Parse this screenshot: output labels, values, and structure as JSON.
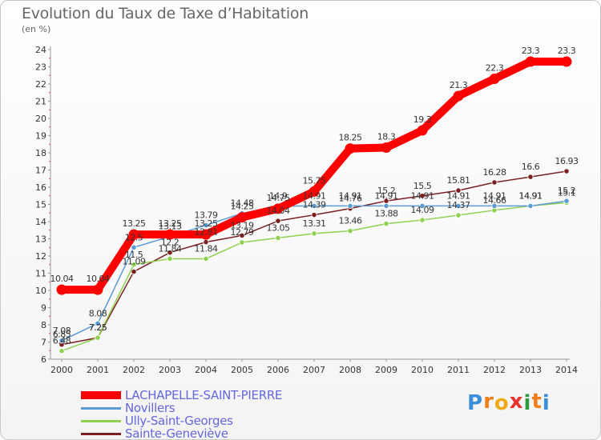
{
  "title": "Evolution du Taux de Taxe d’Habitation",
  "subtitle": "(en %)",
  "logo": {
    "letters": [
      "P",
      "r",
      "o",
      "x",
      "i",
      "t",
      "i"
    ],
    "colors": [
      "#3a8fd9",
      "#f07f1a",
      "#f0a91a",
      "#e8342c",
      "#2d9a3e",
      "#f07f1a",
      "#3a8fd9"
    ]
  },
  "chart_data": {
    "type": "line",
    "x": [
      "2000",
      "2001",
      "2002",
      "2003",
      "2004",
      "2005",
      "2006",
      "2007",
      "2008",
      "2009",
      "2010",
      "2011",
      "2012",
      "2013",
      "2014"
    ],
    "ylim": [
      6,
      24
    ],
    "yticks": [
      6,
      7,
      8,
      9,
      10,
      11,
      12,
      13,
      14,
      15,
      16,
      17,
      18,
      19,
      20,
      21,
      22,
      23,
      24
    ],
    "grid": false,
    "legend_position": "bottom-left",
    "series": [
      {
        "name": "LACHAPELLE-SAINT-PIERRE",
        "color": "#ff0000",
        "values": [
          10.04,
          10.04,
          13.25,
          13.25,
          13.25,
          14.25,
          14.75,
          15.75,
          18.25,
          18.3,
          19.3,
          21.3,
          22.3,
          23.3,
          23.3
        ],
        "labels": [
          "10.04",
          "10.04",
          "13.25",
          "13.25",
          "13.25",
          "14.25",
          "14.75",
          "15.75",
          "18.25",
          "18.3",
          "19.3",
          "21.3",
          "22.3",
          "23.3",
          "23.3"
        ]
      },
      {
        "name": "Novillers",
        "color": "#5b9bd5",
        "values": [
          7.08,
          8.08,
          12.5,
          13.13,
          13.79,
          14.48,
          14.9,
          14.91,
          14.91,
          14.91,
          14.91,
          14.91,
          14.91,
          14.91,
          15.2
        ],
        "labels": [
          "7.08",
          "8.08",
          "12.5",
          "13.13",
          "13.79",
          "14.48",
          "14.9",
          "14.91",
          "14.91",
          "14.91",
          "14.91",
          "14.91",
          "14.91",
          "14.91",
          "15.2"
        ]
      },
      {
        "name": "Ully-Saint-Georges",
        "color": "#90d050",
        "values": [
          6.48,
          7.25,
          11.5,
          11.84,
          11.84,
          12.79,
          13.05,
          13.31,
          13.46,
          13.88,
          14.09,
          14.37,
          14.66,
          14.91,
          15.1
        ],
        "labels": [
          "6.48",
          "7.25",
          "11.5",
          "11.84",
          "11.84",
          "12.79",
          "13.05",
          "13.31",
          "13.46",
          "13.88",
          "14.09",
          "14.37",
          "14.66",
          "14.91",
          "15.1"
        ]
      },
      {
        "name": "Sainte-Geneviève",
        "color": "#7a2020",
        "values": [
          6.85,
          7.25,
          11.09,
          12.2,
          12.81,
          13.19,
          14.04,
          14.39,
          14.76,
          15.2,
          15.5,
          15.81,
          16.28,
          16.6,
          16.93
        ],
        "labels": [
          "6.85",
          "7.25",
          "11.09",
          "12.2",
          "12.81",
          "13.19",
          "14.04",
          "14.39",
          "14.76",
          "15.2",
          "15.5",
          "15.81",
          "16.28",
          "16.6",
          "16.93"
        ]
      }
    ]
  }
}
